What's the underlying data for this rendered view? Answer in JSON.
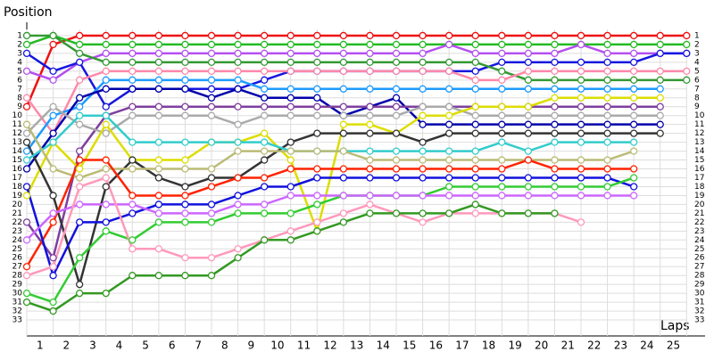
{
  "chart_data": {
    "type": "line",
    "y_label": "Position",
    "x_label": "Laps",
    "x": [
      0,
      1,
      2,
      3,
      4,
      5,
      6,
      7,
      8,
      9,
      10,
      11,
      12,
      13,
      14,
      15,
      16,
      17,
      18,
      19,
      20,
      21,
      22,
      23,
      24,
      25
    ],
    "xlim": [
      0,
      25.7
    ],
    "ylim": [
      34.8,
      -0.5
    ],
    "xticks": [
      {
        "value": 0.5,
        "label": "1"
      },
      {
        "value": 1.5,
        "label": "2"
      },
      {
        "value": 2.5,
        "label": "3"
      },
      {
        "value": 3.5,
        "label": "4"
      },
      {
        "value": 4.5,
        "label": "5"
      },
      {
        "value": 5.5,
        "label": "6"
      },
      {
        "value": 6.5,
        "label": "7"
      },
      {
        "value": 7.5,
        "label": "8"
      },
      {
        "value": 8.5,
        "label": "9"
      },
      {
        "value": 9.5,
        "label": "10"
      },
      {
        "value": 10.5,
        "label": "11"
      },
      {
        "value": 11.5,
        "label": "12"
      },
      {
        "value": 12.5,
        "label": "13"
      },
      {
        "value": 13.5,
        "label": "14"
      },
      {
        "value": 14.5,
        "label": "15"
      },
      {
        "value": 15.5,
        "label": "16"
      },
      {
        "value": 16.5,
        "label": "17"
      },
      {
        "value": 17.5,
        "label": "18"
      },
      {
        "value": 18.5,
        "label": "19"
      },
      {
        "value": 19.5,
        "label": "20"
      },
      {
        "value": 20.5,
        "label": "21"
      },
      {
        "value": 21.5,
        "label": "22"
      },
      {
        "value": 22.5,
        "label": "23"
      },
      {
        "value": 23.5,
        "label": "24"
      },
      {
        "value": 24.5,
        "label": "25"
      }
    ],
    "yticks": [
      1,
      2,
      3,
      4,
      5,
      6,
      7,
      8,
      9,
      10,
      11,
      12,
      13,
      14,
      15,
      16,
      17,
      18,
      19,
      20,
      21,
      22,
      23,
      24,
      25,
      26,
      27,
      28,
      29,
      30,
      31,
      32,
      33
    ],
    "grid": true,
    "series": [
      {
        "color": "#ee1111",
        "values": [
          9,
          2,
          1,
          1,
          1,
          1,
          1,
          1,
          1,
          1,
          1,
          1,
          1,
          1,
          1,
          1,
          1,
          1,
          1,
          1,
          1,
          1,
          1,
          1,
          1,
          1
        ]
      },
      {
        "color": "#22bb22",
        "values": [
          2,
          1,
          2,
          2,
          2,
          2,
          2,
          2,
          2,
          2,
          2,
          2,
          2,
          2,
          2,
          2,
          2,
          2,
          2,
          2,
          2,
          2,
          2,
          2,
          2,
          2
        ]
      },
      {
        "color": "#b44ff0",
        "values": [
          5,
          6,
          4,
          3,
          3,
          3,
          3,
          3,
          3,
          3,
          3,
          3,
          3,
          3,
          3,
          3,
          2,
          3,
          3,
          3,
          3,
          2,
          3,
          3,
          3,
          3
        ]
      },
      {
        "color": "#1515e0",
        "values": [
          3,
          5,
          4,
          9,
          7,
          7,
          7,
          7,
          7,
          6,
          5,
          5,
          5,
          5,
          5,
          5,
          5,
          5,
          4,
          4,
          4,
          4,
          4,
          4,
          3,
          3
        ]
      },
      {
        "color": "#339933",
        "values": [
          1,
          1,
          3,
          4,
          4,
          4,
          4,
          4,
          4,
          4,
          4,
          4,
          4,
          4,
          4,
          4,
          4,
          4,
          5,
          6,
          6,
          6,
          6,
          6,
          6,
          6
        ]
      },
      {
        "color": "#ff88aa",
        "values": [
          8,
          12,
          6,
          5,
          5,
          5,
          5,
          5,
          5,
          5,
          5,
          5,
          5,
          5,
          5,
          5,
          5,
          6,
          6,
          5,
          5,
          5,
          5,
          5,
          5,
          5
        ]
      },
      {
        "color": "#1e9bff",
        "values": [
          14,
          10,
          9,
          6,
          6,
          6,
          6,
          6,
          6,
          7,
          7,
          7,
          7,
          7,
          7,
          7,
          7,
          7,
          7,
          7,
          7,
          7,
          7,
          7,
          7,
          null
        ]
      },
      {
        "color": "#0000aa",
        "values": [
          16,
          12,
          8,
          7,
          7,
          7,
          7,
          8,
          7,
          8,
          8,
          8,
          10,
          9,
          8,
          11,
          11,
          11,
          11,
          11,
          11,
          11,
          11,
          11,
          11,
          null
        ]
      },
      {
        "color": "#7f3f9f",
        "values": [
          22,
          26,
          14,
          10,
          9,
          9,
          9,
          9,
          9,
          9,
          9,
          9,
          9,
          9,
          9,
          9,
          9,
          9,
          9,
          9,
          9,
          9,
          9,
          9,
          9,
          null
        ]
      },
      {
        "color": "#aaaaaa",
        "values": [
          12,
          9,
          11,
          12,
          10,
          10,
          10,
          10,
          11,
          10,
          10,
          10,
          10,
          10,
          10,
          9,
          9,
          10,
          10,
          10,
          10,
          10,
          10,
          10,
          10,
          null
        ]
      },
      {
        "color": "#dddd00",
        "values": [
          19,
          13,
          16,
          11,
          15,
          15,
          15,
          13,
          13,
          12,
          15,
          23,
          11,
          11,
          12,
          10,
          10,
          9,
          9,
          9,
          8,
          8,
          8,
          8,
          8,
          null
        ]
      },
      {
        "color": "#333333",
        "values": [
          13,
          19,
          29,
          18,
          15,
          17,
          18,
          17,
          17,
          15,
          13,
          12,
          12,
          12,
          12,
          13,
          12,
          12,
          12,
          12,
          12,
          12,
          12,
          12,
          12,
          null
        ]
      },
      {
        "color": "#33cccc",
        "values": [
          15,
          13,
          10,
          10,
          13,
          13,
          13,
          13,
          13,
          13,
          14,
          14,
          14,
          14,
          14,
          14,
          14,
          14,
          13,
          14,
          13,
          13,
          13,
          13,
          null,
          null
        ]
      },
      {
        "color": "#bbbb77",
        "values": [
          11,
          16,
          17,
          16,
          16,
          16,
          16,
          16,
          14,
          14,
          14,
          14,
          14,
          15,
          15,
          15,
          15,
          15,
          15,
          15,
          15,
          15,
          15,
          14,
          null,
          null
        ]
      },
      {
        "color": "#ff2200",
        "values": [
          27,
          22,
          15,
          15,
          19,
          19,
          19,
          18,
          17,
          17,
          16,
          16,
          16,
          16,
          16,
          16,
          16,
          16,
          16,
          15,
          16,
          16,
          16,
          16,
          null,
          null
        ]
      },
      {
        "color": "#1111dd",
        "values": [
          18,
          28,
          22,
          22,
          21,
          20,
          20,
          20,
          19,
          18,
          18,
          17,
          17,
          17,
          17,
          17,
          17,
          17,
          17,
          17,
          17,
          17,
          17,
          18,
          null,
          null
        ]
      },
      {
        "color": "#33cc33",
        "values": [
          30,
          31,
          26,
          23,
          24,
          22,
          22,
          22,
          21,
          21,
          21,
          20,
          19,
          19,
          19,
          19,
          18,
          18,
          18,
          18,
          18,
          18,
          18,
          17,
          null,
          null
        ]
      },
      {
        "color": "#cc66ff",
        "values": [
          24,
          21,
          20,
          20,
          20,
          21,
          21,
          21,
          20,
          20,
          19,
          19,
          19,
          19,
          19,
          19,
          19,
          19,
          19,
          19,
          19,
          19,
          19,
          19,
          null,
          null
        ]
      },
      {
        "color": "#ff99bb",
        "values": [
          28,
          27,
          18,
          17,
          25,
          25,
          26,
          26,
          25,
          24,
          23,
          22,
          21,
          20,
          21,
          22,
          21,
          21,
          21,
          21,
          21,
          22,
          null,
          null,
          null,
          null
        ]
      },
      {
        "color": "#339922",
        "values": [
          31,
          32,
          30,
          30,
          28,
          28,
          28,
          28,
          26,
          24,
          24,
          23,
          22,
          21,
          21,
          21,
          21,
          20,
          21,
          21,
          21,
          null,
          null,
          null,
          null,
          null
        ]
      }
    ]
  }
}
